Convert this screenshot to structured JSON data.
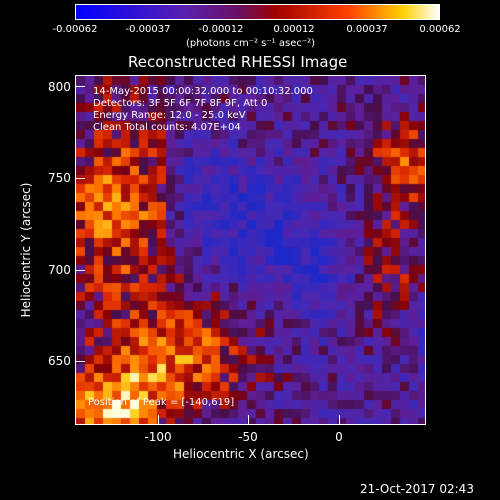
{
  "colorbar": {
    "tick_labels": [
      "-0.00062",
      "-0.00037",
      "-0.00012",
      "0.00012",
      "0.00037",
      "0.00062"
    ],
    "units": "(photons cm⁻² s⁻¹ asec⁻²)"
  },
  "image_title": "Reconstructed RHESSI Image",
  "info": {
    "time": "14-May-2015 00:00:32.000 to 00:10:32.000",
    "detectors": "Detectors: 3F 5F 6F 7F 8F 9F, Att 0",
    "energy": "Energy Range: 12.0 - 25.0 keV",
    "method": "Clean      Total counts: 4.07E+04"
  },
  "peak_label": "Position of Peak = [-140,619]",
  "x_axis": {
    "label": "Heliocentric X (arcsec)",
    "tick_labels": [
      "-100",
      "-50",
      "0"
    ]
  },
  "y_axis": {
    "label": "Heliocentric Y (arcsec)",
    "tick_labels": [
      "800",
      "750",
      "700",
      "650"
    ]
  },
  "timestamp": "21-Oct-2017 02:43"
}
